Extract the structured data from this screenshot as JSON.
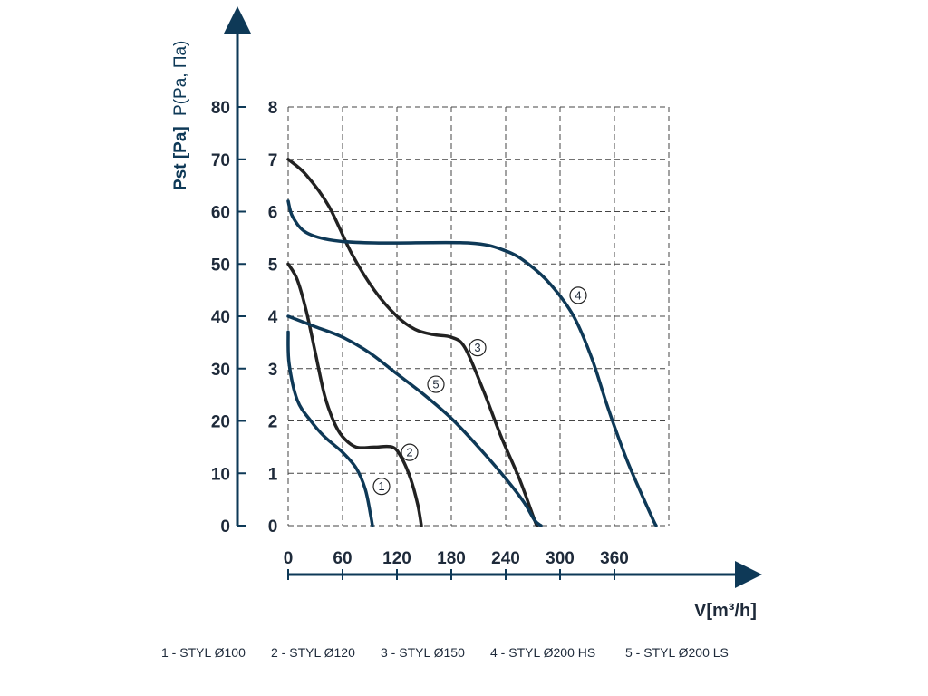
{
  "chart_data": {
    "type": "line",
    "xlabel": "V[m³/h]",
    "ylabel_left": "Pst [Pa]",
    "ylabel_right": "P(Pa, Па)",
    "x_ticks": [
      0,
      60,
      120,
      180,
      240,
      300,
      360
    ],
    "y_ticks_pa": [
      0,
      10,
      20,
      30,
      40,
      50,
      60,
      70,
      80
    ],
    "y_ticks_secondary": [
      0,
      1,
      2,
      3,
      4,
      5,
      6,
      7,
      8
    ],
    "xlim": [
      0,
      420
    ],
    "ylim": [
      0,
      80
    ],
    "grid": true,
    "colors": {
      "dark": "#222222",
      "navy": "#0e3957"
    },
    "series": [
      {
        "name": "1",
        "color": "#0e3957",
        "points": [
          [
            0,
            37
          ],
          [
            1,
            31
          ],
          [
            10,
            24
          ],
          [
            25,
            20
          ],
          [
            40,
            17
          ],
          [
            60,
            14
          ],
          [
            75,
            11
          ],
          [
            85,
            7
          ],
          [
            91,
            2
          ],
          [
            93,
            0
          ]
        ]
      },
      {
        "name": "2",
        "color": "#222222",
        "points": [
          [
            0,
            50
          ],
          [
            10,
            47
          ],
          [
            20,
            41
          ],
          [
            30,
            33
          ],
          [
            40,
            25
          ],
          [
            50,
            20
          ],
          [
            60,
            17
          ],
          [
            75,
            15
          ],
          [
            95,
            15
          ],
          [
            115,
            15
          ],
          [
            125,
            13
          ],
          [
            135,
            9
          ],
          [
            143,
            4
          ],
          [
            147,
            0
          ]
        ]
      },
      {
        "name": "3",
        "color": "#222222",
        "points": [
          [
            0,
            70
          ],
          [
            20,
            67
          ],
          [
            45,
            61
          ],
          [
            70,
            52
          ],
          [
            95,
            45
          ],
          [
            120,
            40
          ],
          [
            140,
            37.5
          ],
          [
            160,
            36.5
          ],
          [
            180,
            36
          ],
          [
            195,
            34
          ],
          [
            215,
            26
          ],
          [
            235,
            17
          ],
          [
            255,
            9
          ],
          [
            272,
            1
          ],
          [
            275,
            0
          ]
        ]
      },
      {
        "name": "4",
        "color": "#0e3957",
        "points": [
          [
            0,
            62
          ],
          [
            5,
            59
          ],
          [
            20,
            56
          ],
          [
            50,
            54.5
          ],
          [
            100,
            54
          ],
          [
            200,
            54
          ],
          [
            240,
            52.5
          ],
          [
            265,
            50
          ],
          [
            290,
            46
          ],
          [
            315,
            40
          ],
          [
            335,
            32
          ],
          [
            350,
            24
          ],
          [
            362,
            18
          ],
          [
            375,
            12
          ],
          [
            390,
            6
          ],
          [
            403,
            1
          ],
          [
            406,
            0
          ]
        ]
      },
      {
        "name": "5",
        "color": "#0e3957",
        "points": [
          [
            0,
            40
          ],
          [
            30,
            38
          ],
          [
            60,
            36
          ],
          [
            90,
            33
          ],
          [
            120,
            29
          ],
          [
            150,
            25
          ],
          [
            180,
            20.5
          ],
          [
            210,
            15
          ],
          [
            240,
            9
          ],
          [
            260,
            4.5
          ],
          [
            272,
            1
          ],
          [
            279,
            0
          ]
        ]
      }
    ],
    "curve_labels": [
      {
        "text": "1",
        "x": 103,
        "y": 7.5
      },
      {
        "text": "2",
        "x": 134,
        "y": 14
      },
      {
        "text": "3",
        "x": 209,
        "y": 34
      },
      {
        "text": "4",
        "x": 320,
        "y": 44
      },
      {
        "text": "5",
        "x": 163,
        "y": 27
      }
    ],
    "legend": [
      "1 - STYL Ø100",
      "2 - STYL Ø120",
      "3 - STYL Ø150",
      "4 - STYL Ø200 HS",
      "5 - STYL Ø200 LS"
    ]
  }
}
